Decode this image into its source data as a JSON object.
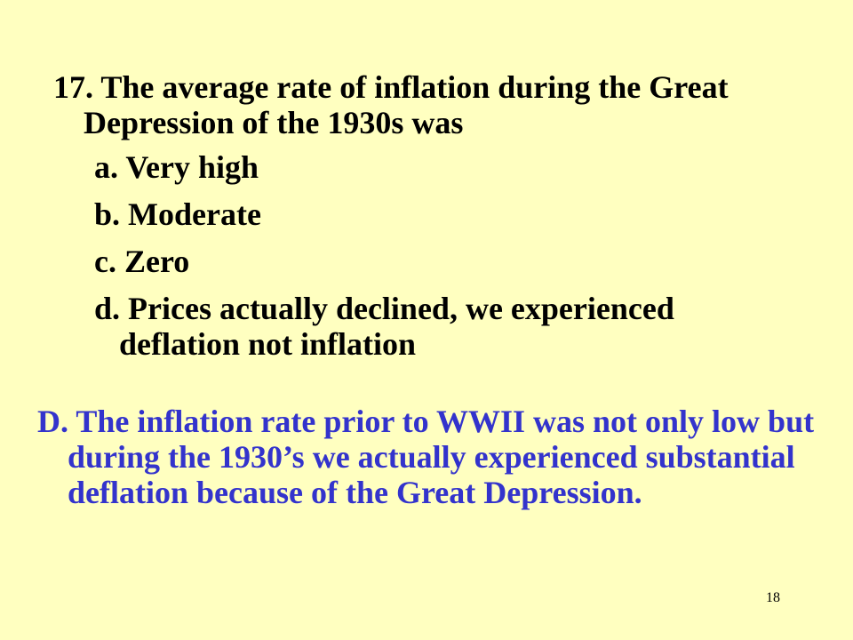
{
  "slide": {
    "question": "17. The average rate of inflation during the Great Depression of the 1930s was",
    "options": [
      "a. Very high",
      "b. Moderate",
      "c. Zero",
      "d. Prices actually declined, we experienced deflation not inflation"
    ],
    "answer": "D. The inflation rate prior to WWII was not only low but during the 1930’s we actually experienced substantial deflation because of the Great Depression.",
    "page_number": "18"
  },
  "colors": {
    "background": "#FFFFC0",
    "question_text": "#000000",
    "answer_text": "#3333CC"
  }
}
